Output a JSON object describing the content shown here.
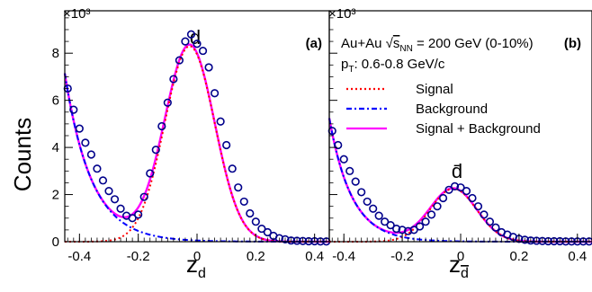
{
  "chart_data": {
    "type": "scatter",
    "ylabel": "Counts",
    "yscale_label": "×10³",
    "ylim": [
      0,
      9.8
    ],
    "xlim": [
      -0.45,
      0.45
    ],
    "x_ticks": [
      "-0.4",
      "-0.2",
      "0",
      "0.2",
      "0.4"
    ],
    "y_ticks": [
      "0",
      "2",
      "4",
      "6",
      "8"
    ],
    "legend": {
      "system": "Au+Au √sNN = 200 GeV (0-10%)",
      "pt": "pT: 0.6-0.8 GeV/c",
      "entries": [
        {
          "name": "Signal",
          "color": "#ff0000",
          "style": "dotted"
        },
        {
          "name": "Background",
          "color": "#0000ff",
          "style": "dashdot"
        },
        {
          "name": "Signal + Background",
          "color": "#ff00ff",
          "style": "solid"
        }
      ]
    },
    "panels": [
      {
        "id": "a",
        "tag": "(a)",
        "particle": "d",
        "xlabel": "zd",
        "points": [
          [
            -0.44,
            6.5
          ],
          [
            -0.42,
            5.6
          ],
          [
            -0.4,
            4.8
          ],
          [
            -0.38,
            4.2
          ],
          [
            -0.36,
            3.7
          ],
          [
            -0.34,
            3.1
          ],
          [
            -0.32,
            2.6
          ],
          [
            -0.3,
            2.15
          ],
          [
            -0.28,
            1.8
          ],
          [
            -0.26,
            1.4
          ],
          [
            -0.24,
            1.1
          ],
          [
            -0.22,
            1.0
          ],
          [
            -0.2,
            1.15
          ],
          [
            -0.18,
            1.9
          ],
          [
            -0.16,
            2.9
          ],
          [
            -0.14,
            3.9
          ],
          [
            -0.12,
            4.9
          ],
          [
            -0.1,
            5.9
          ],
          [
            -0.08,
            6.9
          ],
          [
            -0.06,
            7.7
          ],
          [
            -0.04,
            8.5
          ],
          [
            -0.02,
            8.8
          ],
          [
            0.0,
            8.4
          ],
          [
            0.02,
            8.1
          ],
          [
            0.04,
            7.4
          ],
          [
            0.06,
            6.3
          ],
          [
            0.08,
            5.1
          ],
          [
            0.1,
            4.1
          ],
          [
            0.12,
            3.1
          ],
          [
            0.14,
            2.3
          ],
          [
            0.16,
            1.7
          ],
          [
            0.18,
            1.2
          ],
          [
            0.2,
            0.85
          ],
          [
            0.22,
            0.55
          ],
          [
            0.24,
            0.4
          ],
          [
            0.26,
            0.25
          ],
          [
            0.28,
            0.15
          ],
          [
            0.3,
            0.1
          ],
          [
            0.32,
            0.05
          ],
          [
            0.34,
            0.04
          ],
          [
            0.36,
            0.03
          ],
          [
            0.38,
            0.02
          ],
          [
            0.4,
            0.02
          ],
          [
            0.42,
            0.01
          ],
          [
            0.44,
            0.01
          ]
        ],
        "signal": {
          "amp": 8.3,
          "mu": -0.025,
          "sigma": 0.085
        },
        "background": {
          "amp": 6.4,
          "x0": -0.44,
          "slope": 11.0
        }
      },
      {
        "id": "b",
        "tag": "(b)",
        "particle": "d̄",
        "xlabel": "zd̄",
        "points": [
          [
            -0.44,
            4.7
          ],
          [
            -0.42,
            4.1
          ],
          [
            -0.4,
            3.5
          ],
          [
            -0.38,
            3.0
          ],
          [
            -0.36,
            2.55
          ],
          [
            -0.34,
            2.1
          ],
          [
            -0.32,
            1.7
          ],
          [
            -0.3,
            1.4
          ],
          [
            -0.28,
            1.1
          ],
          [
            -0.26,
            0.85
          ],
          [
            -0.24,
            0.7
          ],
          [
            -0.22,
            0.55
          ],
          [
            -0.2,
            0.5
          ],
          [
            -0.18,
            0.45
          ],
          [
            -0.16,
            0.5
          ],
          [
            -0.14,
            0.65
          ],
          [
            -0.12,
            0.85
          ],
          [
            -0.1,
            1.15
          ],
          [
            -0.08,
            1.5
          ],
          [
            -0.06,
            1.85
          ],
          [
            -0.04,
            2.2
          ],
          [
            -0.02,
            2.35
          ],
          [
            0.0,
            2.3
          ],
          [
            0.02,
            2.15
          ],
          [
            0.04,
            1.85
          ],
          [
            0.06,
            1.5
          ],
          [
            0.08,
            1.15
          ],
          [
            0.1,
            0.85
          ],
          [
            0.12,
            0.6
          ],
          [
            0.14,
            0.4
          ],
          [
            0.16,
            0.3
          ],
          [
            0.18,
            0.2
          ],
          [
            0.2,
            0.12
          ],
          [
            0.22,
            0.08
          ],
          [
            0.24,
            0.05
          ],
          [
            0.26,
            0.04
          ],
          [
            0.28,
            0.03
          ],
          [
            0.3,
            0.02
          ],
          [
            0.32,
            0.02
          ],
          [
            0.34,
            0.02
          ],
          [
            0.36,
            0.01
          ],
          [
            0.38,
            0.01
          ],
          [
            0.4,
            0.01
          ],
          [
            0.42,
            0.01
          ],
          [
            0.44,
            0.01
          ]
        ],
        "signal": {
          "amp": 2.25,
          "mu": -0.025,
          "sigma": 0.08
        },
        "background": {
          "amp": 4.6,
          "x0": -0.44,
          "slope": 13.0
        }
      }
    ]
  }
}
